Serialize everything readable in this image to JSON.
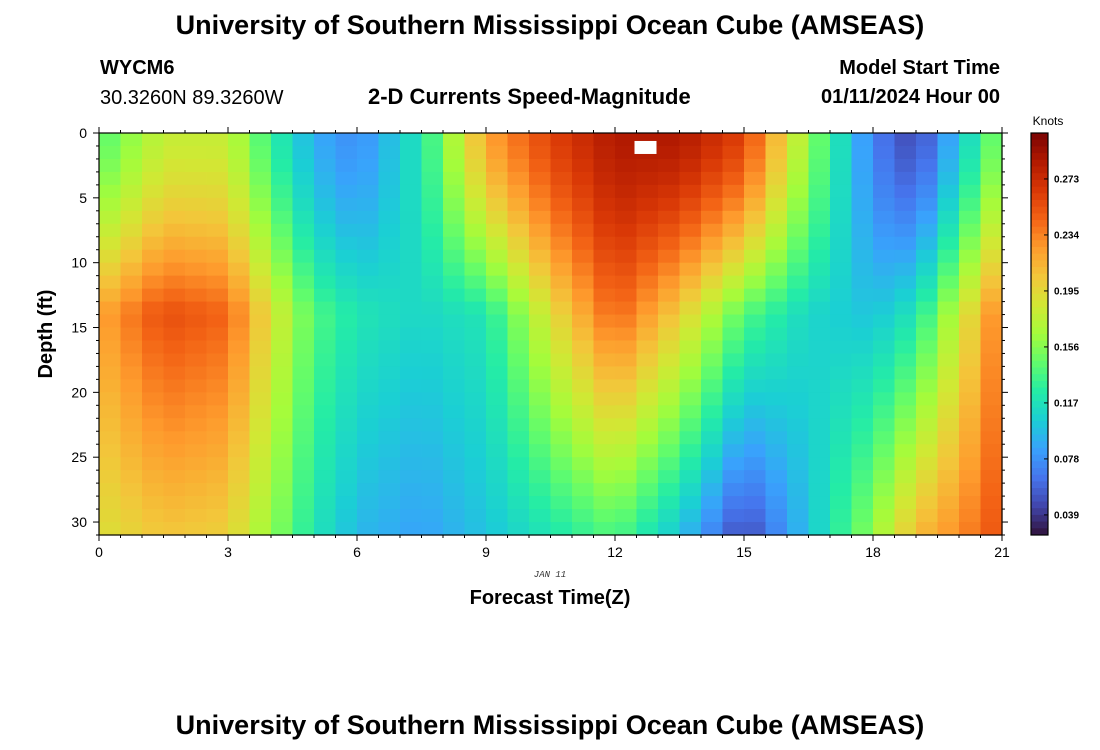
{
  "header": {
    "title_top": "University of Southern Mississippi Ocean Cube (AMSEAS)",
    "station_id": "WYCM6",
    "station_coords": "30.3260N  89.3260W",
    "plot_title": "2-D Currents Speed-Magnitude",
    "model_start_label": "Model Start Time",
    "model_start_value": "01/11/2024 Hour 00",
    "title_bottom": "University of Southern Mississippi Ocean Cube (AMSEAS)"
  },
  "chart_data": {
    "type": "heatmap",
    "title": "2-D Currents Speed-Magnitude",
    "xlabel": "Forecast Time(Z)",
    "ylabel": "Depth (ft)",
    "date_label": "JAN 11",
    "x_range": [
      0,
      21
    ],
    "y_range": [
      0,
      31
    ],
    "x_ticks": [
      0,
      3,
      6,
      9,
      12,
      15,
      18,
      21
    ],
    "y_ticks": [
      0,
      5,
      10,
      15,
      20,
      25,
      30
    ],
    "colorbar": {
      "unit": "Knots",
      "range": [
        0.025,
        0.305
      ],
      "ticks": [
        "0.039",
        "0.078",
        "0.117",
        "0.156",
        "0.195",
        "0.234",
        "0.273"
      ],
      "colors": [
        "#30123b",
        "#4145ab",
        "#4675ed",
        "#39a2fc",
        "#1bcfd4",
        "#24eca6",
        "#61fc6c",
        "#a4fc3b",
        "#d1e834",
        "#f3c63a",
        "#fe9b2d",
        "#f36315",
        "#d93806",
        "#b11901",
        "#7a0403"
      ]
    },
    "grid": {
      "x_step": 0.5,
      "y_step": 1
    },
    "speed_field_description": "estimated current speed (knots) vs forecast hour and depth",
    "speed_anchors_knots": [
      {
        "hour": 0.0,
        "surface": 0.14,
        "mid": 0.22,
        "deep": 0.19
      },
      {
        "hour": 1.5,
        "surface": 0.18,
        "mid": 0.255,
        "deep": 0.205
      },
      {
        "hour": 3.0,
        "surface": 0.18,
        "mid": 0.245,
        "deep": 0.2
      },
      {
        "hour": 4.0,
        "surface": 0.13,
        "mid": 0.19,
        "deep": 0.16
      },
      {
        "hour": 5.0,
        "surface": 0.09,
        "mid": 0.14,
        "deep": 0.12
      },
      {
        "hour": 6.0,
        "surface": 0.075,
        "mid": 0.12,
        "deep": 0.095
      },
      {
        "hour": 7.5,
        "surface": 0.12,
        "mid": 0.11,
        "deep": 0.085
      },
      {
        "hour": 9.0,
        "surface": 0.22,
        "mid": 0.12,
        "deep": 0.1
      },
      {
        "hour": 10.5,
        "surface": 0.26,
        "mid": 0.19,
        "deep": 0.12
      },
      {
        "hour": 12.0,
        "surface": 0.285,
        "mid": 0.245,
        "deep": 0.14
      },
      {
        "hour": 13.5,
        "surface": 0.285,
        "mid": 0.2,
        "deep": 0.1
      },
      {
        "hour": 15.0,
        "surface": 0.26,
        "mid": 0.14,
        "deep": 0.045
      },
      {
        "hour": 16.5,
        "surface": 0.16,
        "mid": 0.11,
        "deep": 0.1
      },
      {
        "hour": 18.0,
        "surface": 0.07,
        "mid": 0.1,
        "deep": 0.16
      },
      {
        "hour": 19.0,
        "surface": 0.045,
        "mid": 0.12,
        "deep": 0.21
      },
      {
        "hour": 20.0,
        "surface": 0.1,
        "mid": 0.18,
        "deep": 0.23
      },
      {
        "hour": 21.0,
        "surface": 0.16,
        "mid": 0.24,
        "deep": 0.255
      }
    ],
    "missing_cells": [
      {
        "hour": 12.5,
        "depth": 1
      }
    ]
  }
}
